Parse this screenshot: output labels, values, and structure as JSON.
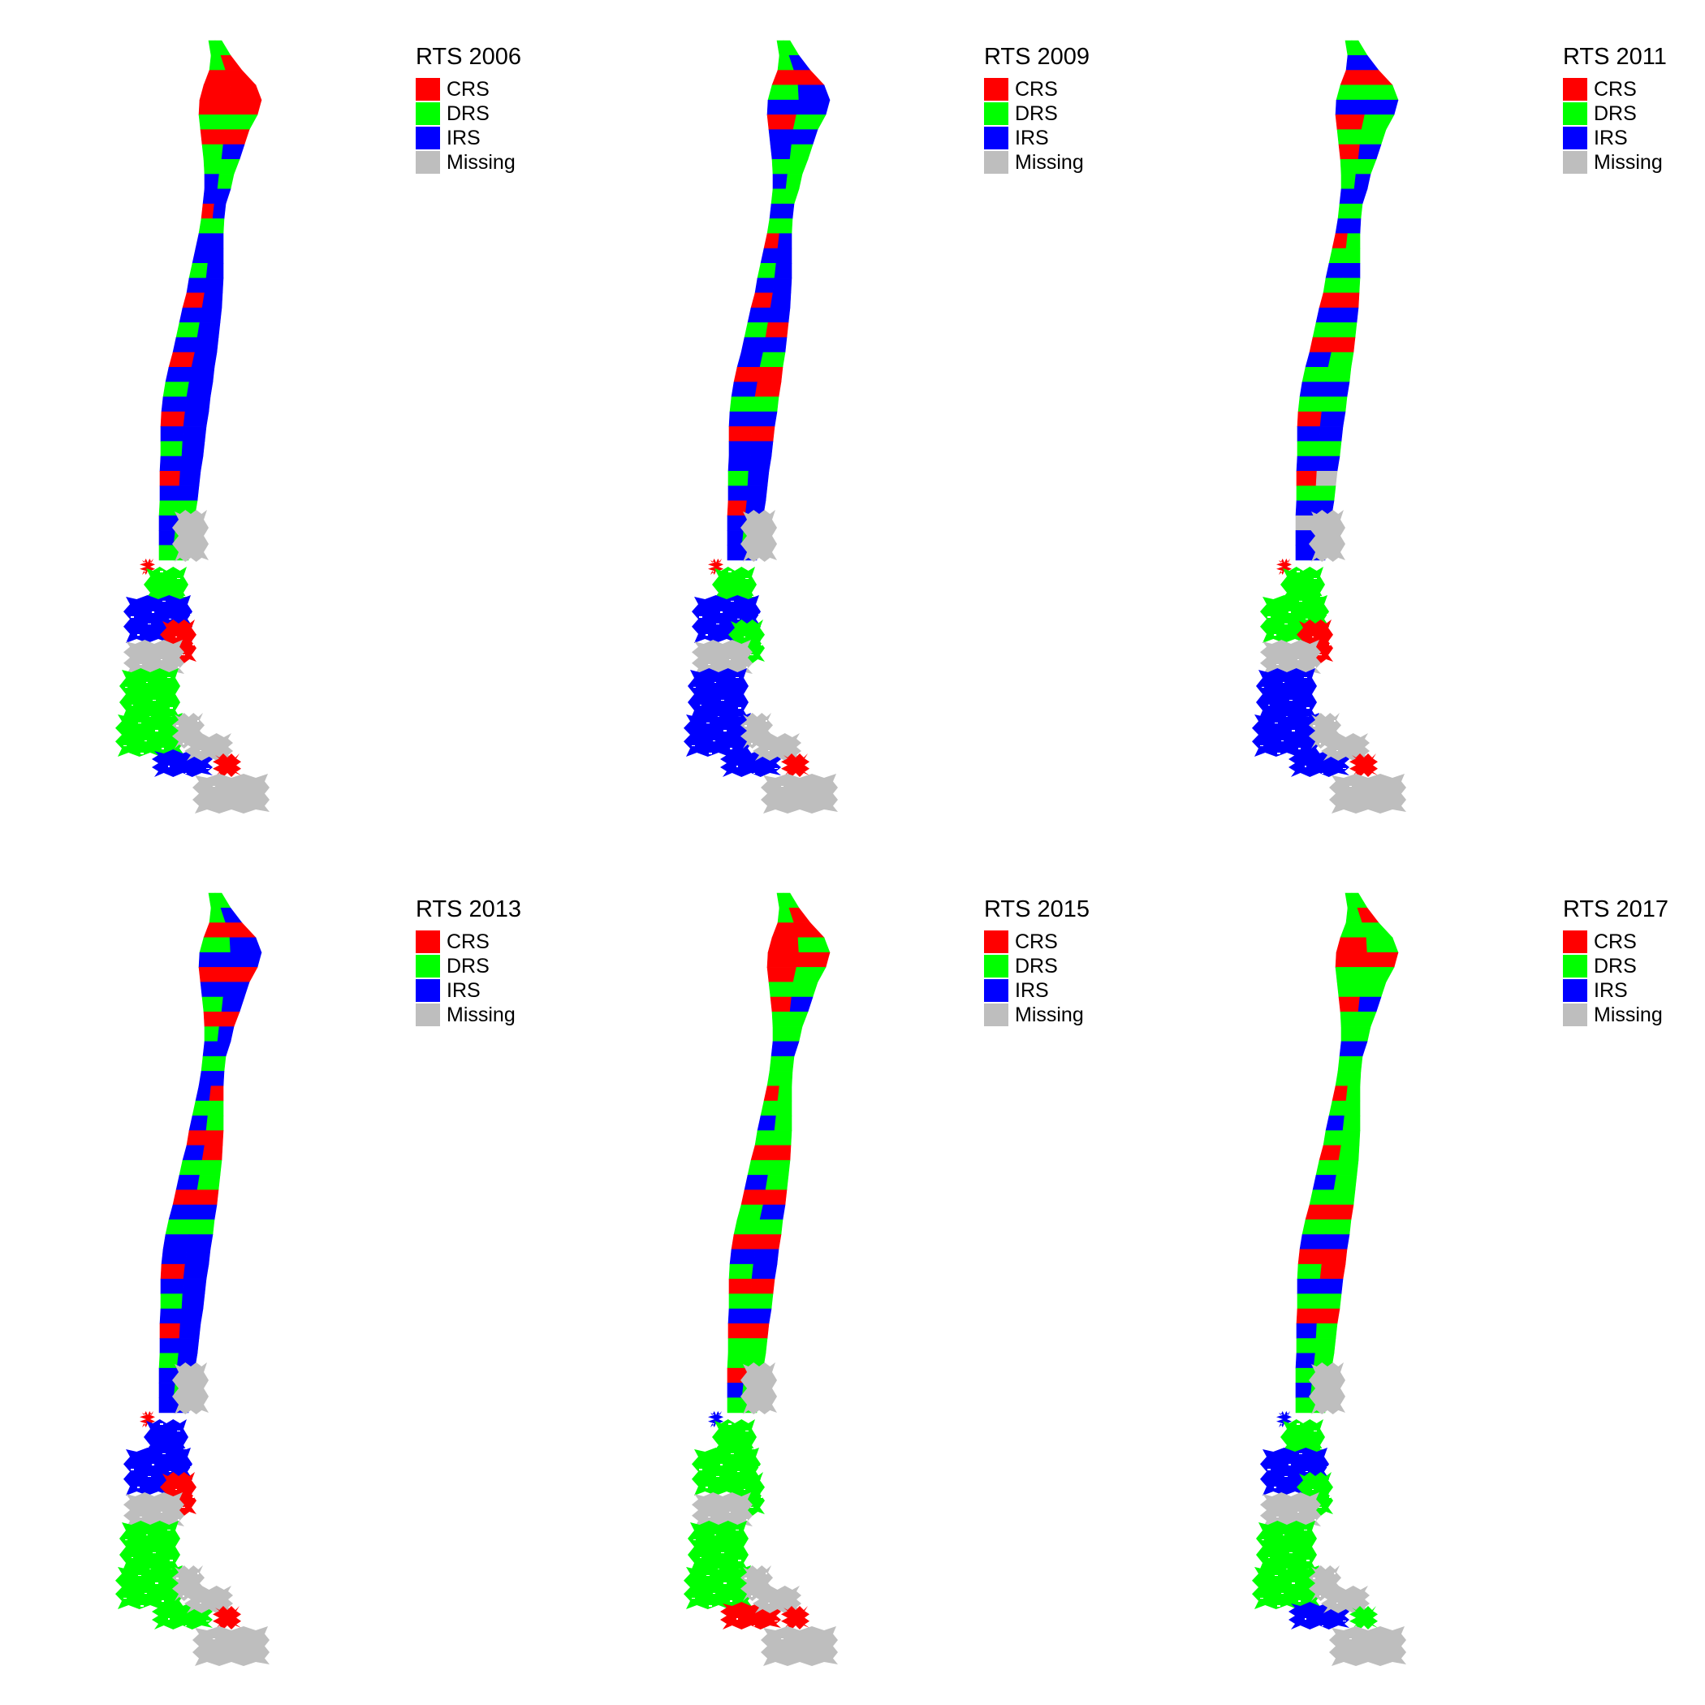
{
  "colors": {
    "CRS": "#ff0000",
    "DRS": "#00ff00",
    "IRS": "#0000ff",
    "Missing": "#bebebe"
  },
  "legend_labels": [
    "CRS",
    "DRS",
    "IRS",
    "Missing"
  ],
  "panels": [
    {
      "title": "RTS 2006",
      "north": [
        "DRS",
        "DRS",
        "CRS",
        "CRS",
        "CRS",
        "DRS",
        "CRS",
        "DRS",
        "DRS",
        "IRS",
        "IRS",
        "CRS",
        "DRS",
        "IRS",
        "IRS",
        "DRS",
        "IRS",
        "CRS",
        "IRS",
        "DRS",
        "IRS",
        "CRS",
        "IRS",
        "DRS",
        "IRS",
        "CRS",
        "IRS",
        "DRS",
        "IRS",
        "CRS",
        "IRS",
        "DRS",
        "IRS",
        "IRS",
        "DRS"
      ],
      "south": [
        "Missing",
        "CRS",
        "DRS",
        "IRS",
        "CRS",
        "Missing",
        "DRS",
        "DRS",
        "Missing",
        "IRS",
        "Missing",
        "CRS",
        "Missing"
      ]
    },
    {
      "title": "RTS 2009",
      "north": [
        "DRS",
        "DRS",
        "CRS",
        "DRS",
        "IRS",
        "CRS",
        "IRS",
        "IRS",
        "DRS",
        "IRS",
        "DRS",
        "IRS",
        "DRS",
        "CRS",
        "IRS",
        "DRS",
        "IRS",
        "CRS",
        "IRS",
        "DRS",
        "IRS",
        "IRS",
        "CRS",
        "IRS",
        "DRS",
        "IRS",
        "CRS",
        "IRS",
        "IRS",
        "DRS",
        "IRS",
        "CRS",
        "IRS",
        "IRS",
        "IRS"
      ],
      "south": [
        "Missing",
        "CRS",
        "DRS",
        "IRS",
        "DRS",
        "Missing",
        "IRS",
        "IRS",
        "Missing",
        "IRS",
        "Missing",
        "CRS",
        "Missing"
      ]
    },
    {
      "title": "RTS 2011",
      "north": [
        "DRS",
        "IRS",
        "CRS",
        "DRS",
        "IRS",
        "CRS",
        "DRS",
        "CRS",
        "DRS",
        "DRS",
        "IRS",
        "DRS",
        "IRS",
        "CRS",
        "DRS",
        "IRS",
        "DRS",
        "CRS",
        "IRS",
        "DRS",
        "CRS",
        "IRS",
        "DRS",
        "IRS",
        "DRS",
        "CRS",
        "IRS",
        "DRS",
        "IRS",
        "CRS",
        "DRS",
        "IRS",
        "Missing",
        "IRS",
        "IRS"
      ],
      "south": [
        "Missing",
        "CRS",
        "DRS",
        "DRS",
        "CRS",
        "Missing",
        "IRS",
        "IRS",
        "Missing",
        "IRS",
        "Missing",
        "CRS",
        "Missing"
      ]
    },
    {
      "title": "RTS 2013",
      "north": [
        "DRS",
        "DRS",
        "CRS",
        "DRS",
        "IRS",
        "CRS",
        "IRS",
        "DRS",
        "CRS",
        "DRS",
        "IRS",
        "DRS",
        "IRS",
        "IRS",
        "DRS",
        "IRS",
        "CRS",
        "IRS",
        "DRS",
        "IRS",
        "CRS",
        "IRS",
        "DRS",
        "IRS",
        "IRS",
        "CRS",
        "IRS",
        "DRS",
        "IRS",
        "CRS",
        "IRS",
        "DRS",
        "IRS",
        "IRS",
        "IRS"
      ],
      "south": [
        "Missing",
        "CRS",
        "IRS",
        "IRS",
        "CRS",
        "Missing",
        "DRS",
        "DRS",
        "Missing",
        "DRS",
        "Missing",
        "CRS",
        "Missing"
      ]
    },
    {
      "title": "RTS 2015",
      "north": [
        "DRS",
        "DRS",
        "CRS",
        "CRS",
        "CRS",
        "CRS",
        "DRS",
        "CRS",
        "DRS",
        "DRS",
        "IRS",
        "DRS",
        "DRS",
        "CRS",
        "DRS",
        "IRS",
        "DRS",
        "CRS",
        "DRS",
        "IRS",
        "CRS",
        "DRS",
        "DRS",
        "CRS",
        "IRS",
        "DRS",
        "CRS",
        "DRS",
        "IRS",
        "CRS",
        "DRS",
        "DRS",
        "CRS",
        "IRS",
        "DRS"
      ],
      "south": [
        "Missing",
        "IRS",
        "DRS",
        "DRS",
        "DRS",
        "Missing",
        "DRS",
        "DRS",
        "Missing",
        "CRS",
        "Missing",
        "CRS",
        "Missing"
      ]
    },
    {
      "title": "RTS 2017",
      "north": [
        "DRS",
        "DRS",
        "DRS",
        "CRS",
        "CRS",
        "DRS",
        "DRS",
        "CRS",
        "DRS",
        "DRS",
        "IRS",
        "DRS",
        "DRS",
        "CRS",
        "DRS",
        "IRS",
        "DRS",
        "CRS",
        "DRS",
        "IRS",
        "DRS",
        "CRS",
        "DRS",
        "IRS",
        "CRS",
        "DRS",
        "IRS",
        "DRS",
        "CRS",
        "IRS",
        "DRS",
        "IRS",
        "DRS",
        "IRS",
        "DRS"
      ],
      "south": [
        "Missing",
        "IRS",
        "DRS",
        "IRS",
        "DRS",
        "Missing",
        "DRS",
        "DRS",
        "Missing",
        "IRS",
        "Missing",
        "DRS",
        "Missing"
      ]
    }
  ]
}
